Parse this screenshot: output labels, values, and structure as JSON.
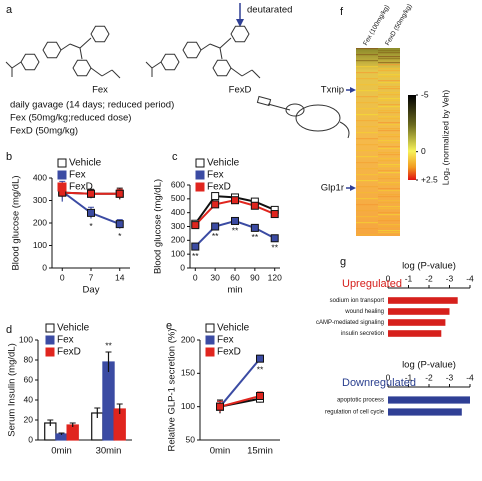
{
  "figure": {
    "panel_labels": [
      "a",
      "b",
      "c",
      "d",
      "e",
      "f",
      "g"
    ],
    "scheme": {
      "modification": "deutarated",
      "compounds": [
        "Fex",
        "FexD"
      ],
      "protocol": [
        "daily gavage (14 days; reduced period)",
        "Fex (50mg/kg;reduced dose)",
        "FexD (50mg/kg)"
      ]
    }
  },
  "chart_data": [
    {
      "type": "line",
      "ylabel": "Blood glucose (mg/dL)",
      "xlabel": "Day",
      "x": [
        0,
        7,
        14
      ],
      "xlim": [
        -2.5,
        16.5
      ],
      "xticks": [
        0,
        7,
        14
      ],
      "ylim": [
        0,
        400
      ],
      "yticks": [
        0,
        100,
        200,
        300,
        400
      ],
      "edge_color": "#111111",
      "series": [
        {
          "name": "Vehicle",
          "color": "#ffffff",
          "line_color": "#111111",
          "values": [
            335,
            330,
            330
          ],
          "errors": [
            20,
            20,
            25
          ]
        },
        {
          "name": "Fex",
          "color": "#3b4ba3",
          "line_color": "#3b4ba3",
          "values": [
            340,
            245,
            195
          ],
          "errors": [
            45,
            25,
            20
          ],
          "significance": [
            null,
            "*",
            "*"
          ]
        },
        {
          "name": "FexD",
          "color": "#e0251e",
          "line_color": "#e0251e",
          "values": [
            335,
            330,
            330
          ],
          "errors": [
            20,
            15,
            20
          ]
        }
      ]
    },
    {
      "type": "line",
      "ylabel": "Blood glucose (mg/dL)",
      "xlabel": "min",
      "x": [
        0,
        30,
        60,
        90,
        120
      ],
      "xlim": [
        -8,
        128
      ],
      "xticks": [
        0,
        30,
        60,
        90,
        120
      ],
      "ylim": [
        0,
        600
      ],
      "yticks": [
        0,
        100,
        200,
        300,
        400,
        500,
        600
      ],
      "edge_color": "#111111",
      "series": [
        {
          "name": "Vehicle",
          "color": "#ffffff",
          "line_color": "#111111",
          "values": [
            320,
            520,
            510,
            480,
            420
          ],
          "errors": [
            15,
            15,
            15,
            15,
            15
          ]
        },
        {
          "name": "Fex",
          "color": "#3b4ba3",
          "line_color": "#3b4ba3",
          "values": [
            155,
            300,
            340,
            290,
            215
          ],
          "errors": [
            15,
            15,
            15,
            15,
            15
          ],
          "significance": [
            "**",
            "**",
            "**",
            "**",
            "**"
          ]
        },
        {
          "name": "FexD",
          "color": "#e0251e",
          "line_color": "#e0251e",
          "values": [
            310,
            460,
            490,
            450,
            390
          ],
          "errors": [
            15,
            15,
            15,
            15,
            15
          ]
        }
      ]
    },
    {
      "type": "bar",
      "ylabel": "Serum Insulin (mg/dL)",
      "categories": [
        "0min",
        "30min"
      ],
      "ylim": [
        0,
        100
      ],
      "yticks": [
        0,
        20,
        40,
        60,
        80,
        100
      ],
      "edge_color": "#111111",
      "series": [
        {
          "name": "Vehicle",
          "color": "#ffffff",
          "line_color": "#111111",
          "values": [
            17,
            27
          ],
          "errors": [
            3,
            5
          ]
        },
        {
          "name": "Fex",
          "color": "#3b4ba3",
          "line_color": "#3b4ba3",
          "values": [
            6,
            78
          ],
          "errors": [
            1,
            10
          ],
          "significance": [
            null,
            "**"
          ]
        },
        {
          "name": "FexD",
          "color": "#e0251e",
          "line_color": "#e0251e",
          "values": [
            15,
            31
          ],
          "errors": [
            2,
            5
          ]
        }
      ]
    },
    {
      "type": "line",
      "ylabel": "Relative GLP-1 secretion (%)",
      "categories": [
        "0min",
        "15min"
      ],
      "ylim": [
        50,
        200
      ],
      "yticks": [
        50,
        100,
        150,
        200
      ],
      "edge_color": "#111111",
      "series": [
        {
          "name": "Vehicle",
          "color": "#ffffff",
          "line_color": "#111111",
          "values": [
            100,
            112
          ],
          "errors": [
            10,
            6
          ]
        },
        {
          "name": "Fex",
          "color": "#3b4ba3",
          "line_color": "#3b4ba3",
          "values": [
            100,
            172
          ],
          "errors": [
            8,
            5
          ],
          "significance": [
            null,
            "**"
          ]
        },
        {
          "name": "FexD",
          "color": "#e0251e",
          "line_color": "#e0251e",
          "values": [
            100,
            116
          ],
          "errors": [
            8,
            6
          ]
        }
      ]
    },
    {
      "type": "heatmap",
      "columns": [
        "Fex (100mg/kg)",
        "FexD (50mg/kg)"
      ],
      "highlighted_rows": [
        "Txnip",
        "Glp1r"
      ],
      "clim": [
        -5,
        2.5
      ],
      "cticks": [
        -5,
        0,
        {
          "value": 2.5,
          "label": "+2.5"
        }
      ],
      "colorbar_label": "Log₂ (normalized by Veh)"
    },
    {
      "type": "hbar",
      "title": "Upregulated",
      "title_color": "#d6201c",
      "xlabel": "log (P-value)",
      "categories": [
        "sodium ion transport",
        "wound healing",
        "cAMP-mediated signaling",
        "insulin secretion"
      ],
      "values": [
        -3.4,
        -3.0,
        -2.8,
        -2.6
      ],
      "color": "#d6201c",
      "xlim": [
        0,
        -4
      ],
      "xticks": [
        0,
        -1,
        -2,
        -3,
        -4
      ]
    },
    {
      "type": "hbar",
      "title": "Downregulated",
      "title_color": "#2a3f8f",
      "xlabel": "log (P-value)",
      "categories": [
        "apoptotic process",
        "regulation of cell cycle"
      ],
      "values": [
        -4.0,
        -3.6
      ],
      "color": "#2f3f95",
      "xlim": [
        0,
        -4
      ],
      "xticks": [
        0,
        -1,
        -2,
        -3,
        -4
      ]
    }
  ]
}
